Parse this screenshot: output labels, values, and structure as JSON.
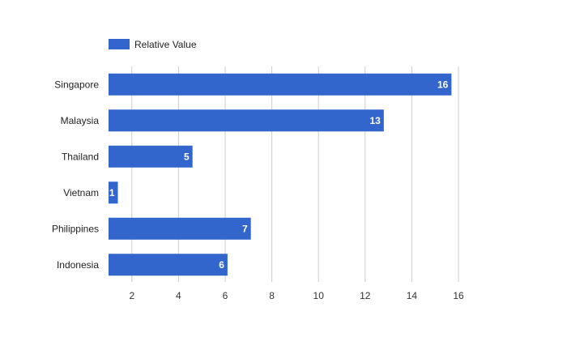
{
  "chart_data": {
    "type": "bar",
    "orientation": "horizontal",
    "categories": [
      "Singapore",
      "Malaysia",
      "Thailand",
      "Vietnam",
      "Philippines",
      "Indonesia"
    ],
    "series": [
      {
        "name": "Relative Value",
        "values": [
          16,
          13,
          5,
          1,
          7,
          6
        ]
      }
    ],
    "bar_values": [
      15.7,
      12.8,
      4.6,
      1.4,
      7.1,
      6.1
    ],
    "xlim": [
      1,
      16
    ],
    "x_ticks": [
      2,
      4,
      6,
      8,
      10,
      12,
      14,
      16
    ],
    "grid": true,
    "legend_position": "top-left",
    "colors": {
      "bar": "#3366cc",
      "grid": "#cccccc",
      "data_label": "#ffffff"
    }
  }
}
